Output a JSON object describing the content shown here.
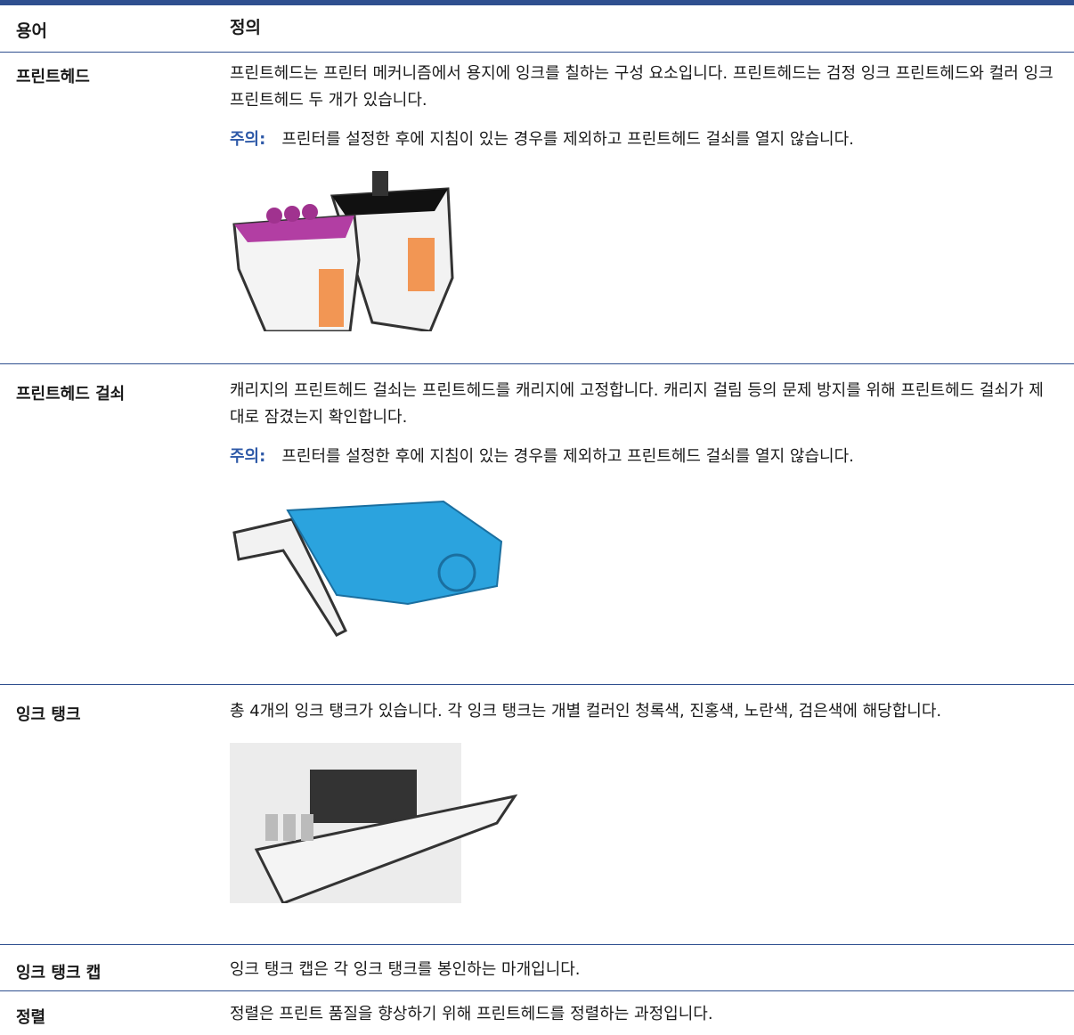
{
  "table": {
    "header": [
      "용어",
      "정의"
    ],
    "rows": [
      {
        "term": "프린트헤드",
        "text": "프린트헤드는 프린터 메커니즘에서 용지에 잉크를 칠하는 구성 요소입니다. 프린트헤드는 검정 잉크 프린트헤드와 컬러 잉크 프린트헤드 두 개가 있습니다.",
        "note_label": "주의:",
        "note": "프린터를 설정한 후에 지침이 있는 경우를 제외하고 프린트헤드 걸쇠를 열지 않습니다."
      },
      {
        "term": "프린트헤드 걸쇠",
        "text": "캐리지의 프린트헤드 걸쇠는 프린트헤드를 캐리지에 고정합니다. 캐리지 걸림 등의 문제 방지를 위해 프린트헤드 걸쇠가 제대로 잠겼는지 확인합니다.",
        "note_label": "주의:",
        "note": "프린터를 설정한 후에 지침이 있는 경우를 제외하고 프린트헤드 걸쇠를 열지 않습니다."
      },
      {
        "term": "잉크 탱크",
        "text": "총 4개의 잉크 탱크가 있습니다. 각 잉크 탱크는 개별 컬러인 청록색, 진홍색, 노란색, 검은색에 해당합니다."
      },
      {
        "term": "잉크 탱크 캡",
        "text": "잉크 탱크 캡은 각 잉크 탱크를 봉인하는 마개입니다."
      },
      {
        "term": "정렬",
        "text": "정렬은 프린트 품질을 향상하기 위해 프린트헤드를 정렬하는 과정입니다."
      }
    ]
  }
}
